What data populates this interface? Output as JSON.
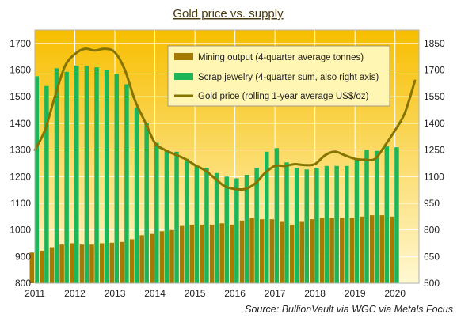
{
  "chart_data": {
    "type": "bar",
    "title": "Gold price vs. supply",
    "source_label": "Source:",
    "source_text": "BullionVault via  WGC via  Metals Focus",
    "x_ticks": [
      "2011",
      "2012",
      "2013",
      "2014",
      "2015",
      "2016",
      "2017",
      "2018",
      "2019",
      "2020"
    ],
    "left_axis": {
      "ticks": [
        800,
        900,
        1000,
        1100,
        1200,
        1300,
        1400,
        1500,
        1600,
        1700
      ],
      "ylim": [
        800,
        1750
      ]
    },
    "right_axis": {
      "ticks": [
        500,
        650,
        800,
        950,
        1100,
        1250,
        1400,
        1550,
        1700,
        1850
      ],
      "ylim": [
        500,
        1925
      ]
    },
    "x_range": [
      2011.0,
      2020.6
    ],
    "grid": true,
    "legend_position": "top-right",
    "colors": {
      "bg_top": "#f7be00",
      "bg_bottom": "#fff8d2",
      "mining": "#a57a00",
      "scrap": "#1cb557",
      "price": "#857500",
      "grid": "#ffffff"
    },
    "series": [
      {
        "name": "Mining output (4-quarter average tonnes)",
        "kind": "bar",
        "axis": "left",
        "x": [
          2011.0,
          2011.25,
          2011.5,
          2011.75,
          2012.0,
          2012.25,
          2012.5,
          2012.75,
          2013.0,
          2013.25,
          2013.5,
          2013.75,
          2014.0,
          2014.25,
          2014.5,
          2014.75,
          2015.0,
          2015.25,
          2015.5,
          2015.75,
          2016.0,
          2016.25,
          2016.5,
          2016.75,
          2017.0,
          2017.25,
          2017.5,
          2017.75,
          2018.0,
          2018.25,
          2018.5,
          2018.75,
          2019.0,
          2019.25,
          2019.5,
          2019.75,
          2020.0
        ],
        "values": [
          915,
          922,
          935,
          945,
          950,
          945,
          945,
          950,
          952,
          955,
          965,
          980,
          985,
          995,
          1000,
          1015,
          1020,
          1020,
          1020,
          1025,
          1020,
          1035,
          1045,
          1040,
          1040,
          1030,
          1020,
          1030,
          1040,
          1045,
          1045,
          1045,
          1045,
          1050,
          1055,
          1055,
          1050
        ]
      },
      {
        "name": "Scrap jewelry (4-quarter sum, also right axis)",
        "kind": "bar",
        "axis": "right",
        "x": [
          2011.0,
          2011.25,
          2011.5,
          2011.75,
          2012.0,
          2012.25,
          2012.5,
          2012.75,
          2013.0,
          2013.25,
          2013.5,
          2013.75,
          2014.0,
          2014.25,
          2014.5,
          2014.75,
          2015.0,
          2015.25,
          2015.5,
          2015.75,
          2016.0,
          2016.25,
          2016.5,
          2016.75,
          2017.0,
          2017.25,
          2017.5,
          2017.75,
          2018.0,
          2018.25,
          2018.5,
          2018.75,
          2019.0,
          2019.25,
          2019.5,
          2019.75,
          2020.0
        ],
        "values": [
          1665,
          1610,
          1710,
          1690,
          1725,
          1725,
          1715,
          1700,
          1680,
          1620,
          1490,
          1400,
          1290,
          1245,
          1240,
          1200,
          1160,
          1150,
          1120,
          1100,
          1090,
          1110,
          1150,
          1240,
          1260,
          1180,
          1150,
          1140,
          1150,
          1160,
          1160,
          1160,
          1200,
          1250,
          1245,
          1270,
          1265
        ]
      },
      {
        "name": "Gold price (rolling 1-year average US$/oz)",
        "kind": "line",
        "axis": "right",
        "x": [
          2011.0,
          2011.25,
          2011.5,
          2011.75,
          2012.0,
          2012.25,
          2012.5,
          2012.75,
          2013.0,
          2013.25,
          2013.5,
          2013.75,
          2014.0,
          2014.25,
          2014.5,
          2014.75,
          2015.0,
          2015.25,
          2015.5,
          2015.75,
          2016.0,
          2016.25,
          2016.5,
          2016.75,
          2017.0,
          2017.25,
          2017.5,
          2017.75,
          2018.0,
          2018.25,
          2018.5,
          2018.75,
          2019.0,
          2019.25,
          2019.5,
          2019.75,
          2020.0,
          2020.25,
          2020.5
        ],
        "values": [
          1250,
          1360,
          1550,
          1720,
          1790,
          1820,
          1810,
          1820,
          1800,
          1700,
          1530,
          1410,
          1290,
          1250,
          1225,
          1200,
          1165,
          1135,
          1090,
          1045,
          1030,
          1030,
          1060,
          1120,
          1160,
          1160,
          1170,
          1165,
          1170,
          1220,
          1240,
          1220,
          1200,
          1195,
          1200,
          1275,
          1360,
          1460,
          1640
        ]
      }
    ]
  }
}
